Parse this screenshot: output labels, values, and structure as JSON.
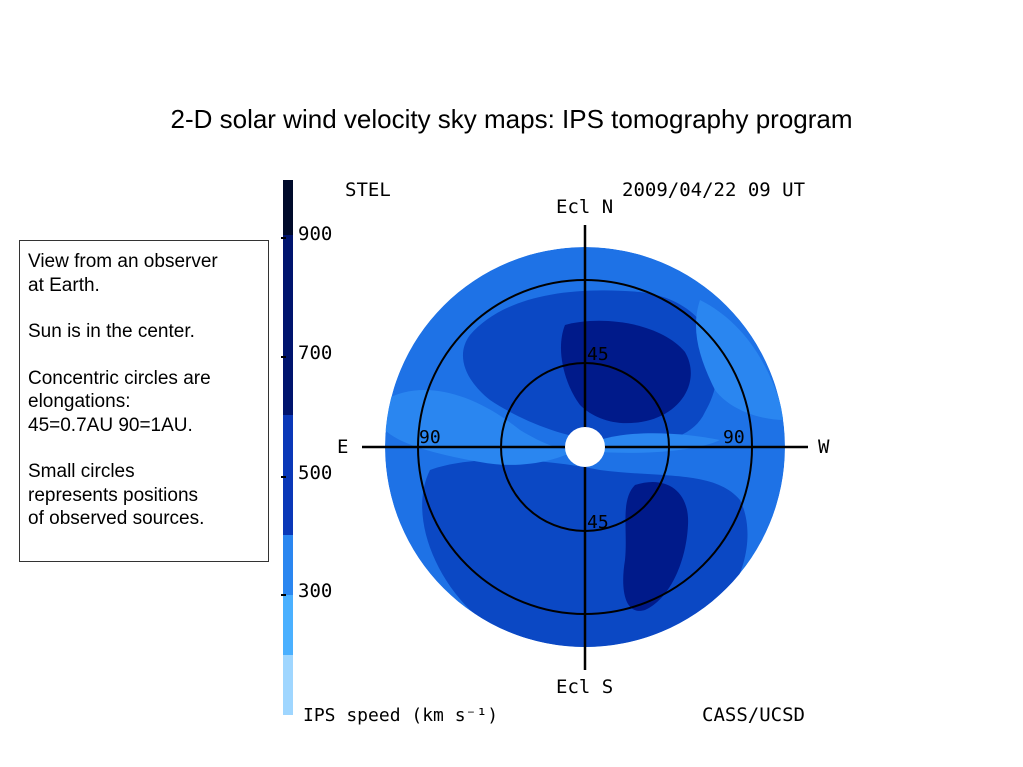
{
  "slide": {
    "title": "2-D solar wind velocity sky maps: IPS tomography program"
  },
  "notes": [
    "View from an observer\nat Earth.",
    "Sun is in the center.",
    "Concentric circles are\nelongations:\n45=0.7AU 90=1AU.",
    "Small circles\nrepresents positions\nof observed sources."
  ],
  "map": {
    "observatory": "STEL",
    "datetime": "2009/04/22  09  UT",
    "north_label": "Ecl N",
    "south_label": "Ecl S",
    "east_label": "E",
    "west_label": "W",
    "ring_labels": {
      "inner_top": "45",
      "inner_bottom": "45",
      "outer_left": "90",
      "outer_right": "90"
    },
    "credit": "CASS/UCSD"
  },
  "colorbar": {
    "ticks": [
      "900",
      "700",
      "500",
      "300"
    ],
    "unit_label": "IPS speed (km s⁻¹)",
    "colors": [
      "#000a2a",
      "#00146e",
      "#0a38b8",
      "#1560d8",
      "#2a86f0",
      "#4ab0ff",
      "#9fd6ff"
    ]
  }
}
